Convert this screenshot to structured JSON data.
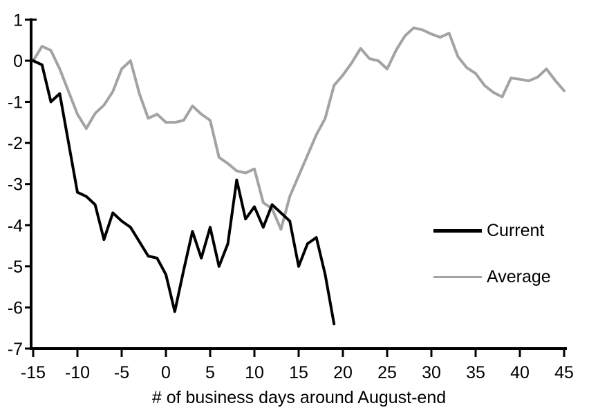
{
  "chart_data": {
    "type": "line",
    "title": "",
    "xlabel": "# of business days around August-end",
    "ylabel": "",
    "xlim": [
      -15,
      45
    ],
    "ylim": [
      -7,
      1
    ],
    "x_ticks": [
      -15,
      -10,
      -5,
      0,
      5,
      10,
      15,
      20,
      25,
      30,
      35,
      40,
      45
    ],
    "y_ticks": [
      1,
      0,
      -1,
      -2,
      -3,
      -4,
      -5,
      -6,
      -7
    ],
    "grid": false,
    "legend_position": "middle-right",
    "axis_color": "#000000",
    "series": [
      {
        "name": "Current",
        "color": "#000000",
        "x": [
          -15,
          -14,
          -13,
          -12,
          -11,
          -10,
          -9,
          -8,
          -7,
          -6,
          -5,
          -4,
          -3,
          -2,
          -1,
          0,
          1,
          2,
          3,
          4,
          5,
          6,
          7,
          8,
          9,
          10,
          11,
          12,
          13,
          14,
          15,
          16,
          17,
          18,
          19
        ],
        "values": [
          0,
          -0.1,
          -1.0,
          -0.8,
          -2.0,
          -3.2,
          -3.3,
          -3.5,
          -4.35,
          -3.7,
          -3.9,
          -4.05,
          -4.4,
          -4.75,
          -4.8,
          -5.2,
          -6.1,
          -5.1,
          -4.15,
          -4.8,
          -4.05,
          -5.0,
          -4.45,
          -2.9,
          -3.85,
          -3.55,
          -4.05,
          -3.5,
          -3.7,
          -3.9,
          -5.0,
          -4.45,
          -4.3,
          -5.2,
          -6.4
        ]
      },
      {
        "name": "Average",
        "color": "#a3a3a3",
        "x": [
          -15,
          -14,
          -13,
          -12,
          -11,
          -10,
          -9,
          -8,
          -7,
          -6,
          -5,
          -4,
          -3,
          -2,
          -1,
          0,
          1,
          2,
          3,
          4,
          5,
          6,
          7,
          8,
          9,
          10,
          11,
          12,
          13,
          14,
          15,
          16,
          17,
          18,
          19,
          20,
          21,
          22,
          23,
          24,
          25,
          26,
          27,
          28,
          29,
          30,
          31,
          32,
          33,
          34,
          35,
          36,
          37,
          38,
          39,
          40,
          41,
          42,
          43,
          44,
          45
        ],
        "values": [
          0,
          0.35,
          0.25,
          -0.2,
          -0.75,
          -1.3,
          -1.65,
          -1.28,
          -1.08,
          -0.75,
          -0.2,
          0.0,
          -0.8,
          -1.4,
          -1.3,
          -1.5,
          -1.5,
          -1.45,
          -1.1,
          -1.3,
          -1.45,
          -2.35,
          -2.5,
          -2.68,
          -2.73,
          -2.63,
          -3.45,
          -3.6,
          -4.1,
          -3.3,
          -2.8,
          -2.3,
          -1.8,
          -1.4,
          -0.6,
          -0.35,
          -0.05,
          0.3,
          0.05,
          0.0,
          -0.2,
          0.25,
          0.6,
          0.8,
          0.75,
          0.65,
          0.57,
          0.67,
          0.1,
          -0.17,
          -0.31,
          -0.6,
          -0.77,
          -0.88,
          -0.42,
          -0.45,
          -0.49,
          -0.4,
          -0.2,
          -0.48,
          -0.73
        ]
      }
    ]
  },
  "legend": {
    "items": [
      {
        "label": "Current",
        "color": "#000000"
      },
      {
        "label": "Average",
        "color": "#a3a3a3"
      }
    ]
  },
  "axes": {
    "xlabel": "# of business days around August-end"
  }
}
